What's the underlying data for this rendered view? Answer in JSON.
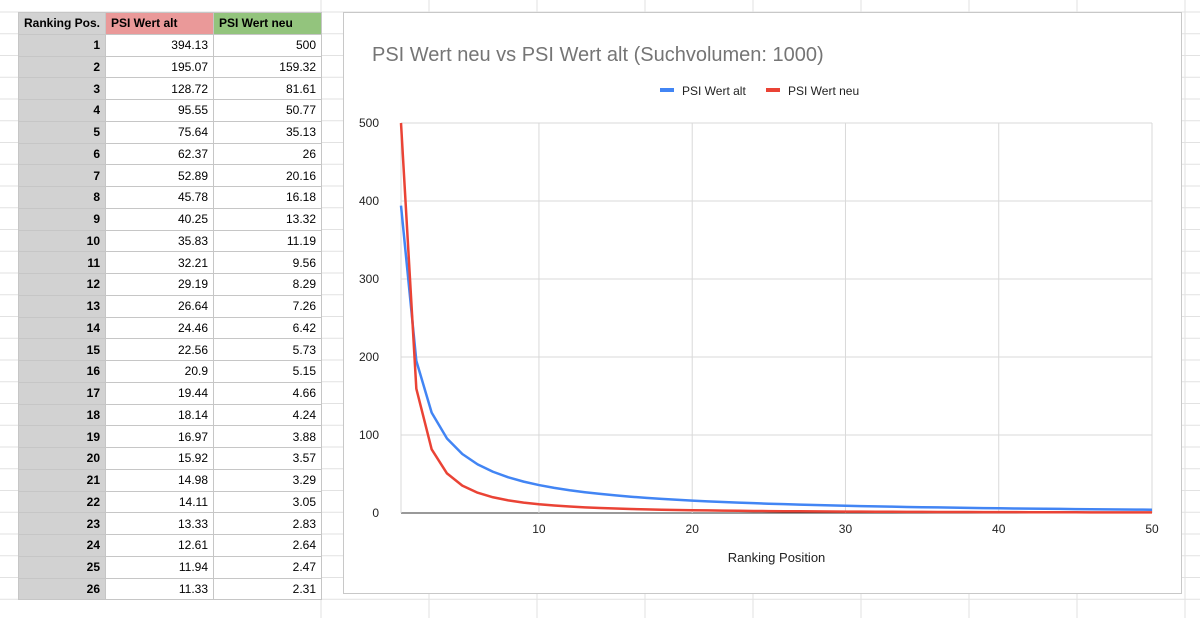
{
  "sheet": {
    "headers": [
      "Ranking Pos.",
      "PSI Wert alt",
      "PSI Wert neu"
    ],
    "header_colors": [
      "#d2d2d2",
      "#ea9999",
      "#93c47d"
    ],
    "rows": [
      [
        "1",
        "394.13",
        "500"
      ],
      [
        "2",
        "195.07",
        "159.32"
      ],
      [
        "3",
        "128.72",
        "81.61"
      ],
      [
        "4",
        "95.55",
        "50.77"
      ],
      [
        "5",
        "75.64",
        "35.13"
      ],
      [
        "6",
        "62.37",
        "26"
      ],
      [
        "7",
        "52.89",
        "20.16"
      ],
      [
        "8",
        "45.78",
        "16.18"
      ],
      [
        "9",
        "40.25",
        "13.32"
      ],
      [
        "10",
        "35.83",
        "11.19"
      ],
      [
        "11",
        "32.21",
        "9.56"
      ],
      [
        "12",
        "29.19",
        "8.29"
      ],
      [
        "13",
        "26.64",
        "7.26"
      ],
      [
        "14",
        "24.46",
        "6.42"
      ],
      [
        "15",
        "22.56",
        "5.73"
      ],
      [
        "16",
        "20.9",
        "5.15"
      ],
      [
        "17",
        "19.44",
        "4.66"
      ],
      [
        "18",
        "18.14",
        "4.24"
      ],
      [
        "19",
        "16.97",
        "3.88"
      ],
      [
        "20",
        "15.92",
        "3.57"
      ],
      [
        "21",
        "14.98",
        "3.29"
      ],
      [
        "22",
        "14.11",
        "3.05"
      ],
      [
        "23",
        "13.33",
        "2.83"
      ],
      [
        "24",
        "12.61",
        "2.64"
      ],
      [
        "25",
        "11.94",
        "2.47"
      ],
      [
        "26",
        "11.33",
        "2.31"
      ]
    ]
  },
  "chart_data": {
    "type": "line",
    "title": "PSI Wert neu vs PSI Wert alt (Suchvolumen: 1000)",
    "xlabel": "Ranking Position",
    "ylabel": "",
    "xlim": [
      1,
      50
    ],
    "ylim": [
      0,
      500
    ],
    "xticks": [
      10,
      20,
      30,
      40,
      50
    ],
    "yticks": [
      0,
      100,
      200,
      300,
      400,
      500
    ],
    "grid": true,
    "legend_position": "top",
    "x": [
      1,
      2,
      3,
      4,
      5,
      6,
      7,
      8,
      9,
      10,
      11,
      12,
      13,
      14,
      15,
      16,
      17,
      18,
      19,
      20,
      21,
      22,
      23,
      24,
      25,
      26,
      27,
      28,
      29,
      30,
      31,
      32,
      33,
      34,
      35,
      36,
      37,
      38,
      39,
      40,
      41,
      42,
      43,
      44,
      45,
      46,
      47,
      48,
      49,
      50
    ],
    "series": [
      {
        "name": "PSI Wert alt",
        "color": "#4285f4",
        "values": [
          394.13,
          195.07,
          128.72,
          95.55,
          75.64,
          62.37,
          52.89,
          45.78,
          40.25,
          35.83,
          32.21,
          29.19,
          26.64,
          24.46,
          22.56,
          20.9,
          19.44,
          18.14,
          16.97,
          15.92,
          14.98,
          14.11,
          13.33,
          12.61,
          11.94,
          11.33,
          10.76,
          10.24,
          9.76,
          9.3,
          8.88,
          8.49,
          8.12,
          7.77,
          7.45,
          7.14,
          6.85,
          6.58,
          6.32,
          6.08,
          5.85,
          5.63,
          5.42,
          5.22,
          5.03,
          4.85,
          4.68,
          4.52,
          4.36,
          4.21
        ]
      },
      {
        "name": "PSI Wert neu",
        "color": "#ea4335",
        "values": [
          500,
          159.32,
          81.61,
          50.77,
          35.13,
          26,
          20.16,
          16.18,
          13.32,
          11.19,
          9.56,
          8.29,
          7.26,
          6.42,
          5.73,
          5.15,
          4.66,
          4.24,
          3.88,
          3.57,
          3.29,
          3.05,
          2.83,
          2.64,
          2.47,
          2.31,
          2.17,
          2.04,
          1.92,
          1.81,
          1.71,
          1.62,
          1.54,
          1.46,
          1.39,
          1.32,
          1.26,
          1.2,
          1.15,
          1.1,
          1.05,
          1.01,
          0.97,
          0.93,
          0.89,
          0.86,
          0.83,
          0.8,
          0.77,
          0.75
        ]
      }
    ]
  }
}
